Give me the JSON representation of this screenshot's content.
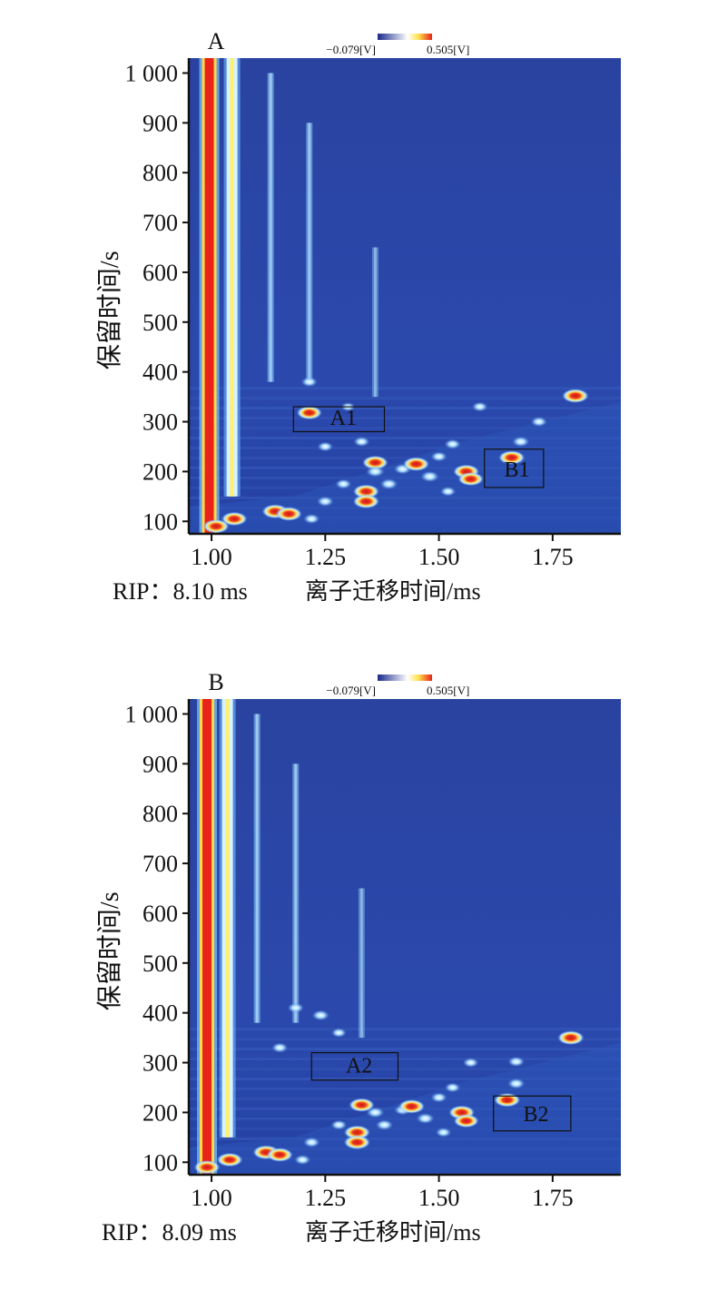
{
  "chart_data": [
    {
      "type": "heatmap",
      "panel_label": "A",
      "xlabel": "离子迁移时间/ms",
      "ylabel": "保留时间/s",
      "x_ticks": [
        {
          "value": 1.0,
          "label": "1.00"
        },
        {
          "value": 1.25,
          "label": "1.25"
        },
        {
          "value": 1.5,
          "label": "1.50"
        },
        {
          "value": 1.75,
          "label": "1.75"
        }
      ],
      "y_ticks": [
        {
          "value": 100,
          "label": "100"
        },
        {
          "value": 200,
          "label": "200"
        },
        {
          "value": 300,
          "label": "300"
        },
        {
          "value": 400,
          "label": "400"
        },
        {
          "value": 500,
          "label": "500"
        },
        {
          "value": 600,
          "label": "600"
        },
        {
          "value": 700,
          "label": "700"
        },
        {
          "value": 800,
          "label": "800"
        },
        {
          "value": 900,
          "label": "900"
        },
        {
          "value": 1000,
          "label": "1 000"
        }
      ],
      "xlim": [
        0.95,
        1.9
      ],
      "ylim": [
        75,
        1030
      ],
      "colorbar": {
        "min_label": "−0.079[V]",
        "max_label": "0.505[V]",
        "colors": [
          "#1a2a8c",
          "#ffffff",
          "#ffe14d",
          "#e8231a"
        ]
      },
      "rip_text": "RIP：8.10 ms",
      "regions": [
        {
          "label": "A1",
          "x0": 1.18,
          "x1": 1.38,
          "y0": 280,
          "y1": 330
        },
        {
          "label": "B1",
          "x0": 1.6,
          "x1": 1.73,
          "y0": 168,
          "y1": 245
        }
      ],
      "streaks": [
        {
          "x": 0.995,
          "y0": 75,
          "y1": 1030,
          "intensity": 1.0
        },
        {
          "x": 1.045,
          "y0": 150,
          "y1": 1030,
          "intensity": 0.7
        },
        {
          "x": 1.13,
          "y0": 380,
          "y1": 1000,
          "intensity": 0.32
        },
        {
          "x": 1.215,
          "y0": 380,
          "y1": 900,
          "intensity": 0.3
        },
        {
          "x": 1.36,
          "y0": 350,
          "y1": 650,
          "intensity": 0.18
        }
      ],
      "peaks": [
        {
          "x": 1.215,
          "y": 318,
          "v": 0.78
        },
        {
          "x": 1.215,
          "y": 380,
          "v": 0.5
        },
        {
          "x": 1.3,
          "y": 330,
          "v": 0.3
        },
        {
          "x": 1.25,
          "y": 250,
          "v": 0.45
        },
        {
          "x": 1.33,
          "y": 260,
          "v": 0.5
        },
        {
          "x": 1.36,
          "y": 218,
          "v": 0.85
        },
        {
          "x": 1.36,
          "y": 200,
          "v": 0.7
        },
        {
          "x": 1.39,
          "y": 175,
          "v": 0.65
        },
        {
          "x": 1.34,
          "y": 160,
          "v": 0.9
        },
        {
          "x": 1.34,
          "y": 140,
          "v": 0.92
        },
        {
          "x": 1.42,
          "y": 205,
          "v": 0.6
        },
        {
          "x": 1.45,
          "y": 215,
          "v": 0.9
        },
        {
          "x": 1.48,
          "y": 190,
          "v": 0.7
        },
        {
          "x": 1.5,
          "y": 230,
          "v": 0.5
        },
        {
          "x": 1.53,
          "y": 255,
          "v": 0.5
        },
        {
          "x": 1.56,
          "y": 200,
          "v": 0.88
        },
        {
          "x": 1.57,
          "y": 185,
          "v": 0.8
        },
        {
          "x": 1.59,
          "y": 330,
          "v": 0.45
        },
        {
          "x": 1.66,
          "y": 228,
          "v": 0.92
        },
        {
          "x": 1.68,
          "y": 260,
          "v": 0.6
        },
        {
          "x": 1.72,
          "y": 300,
          "v": 0.5
        },
        {
          "x": 1.8,
          "y": 352,
          "v": 0.95
        },
        {
          "x": 1.14,
          "y": 120,
          "v": 0.95
        },
        {
          "x": 1.17,
          "y": 115,
          "v": 0.9
        },
        {
          "x": 1.05,
          "y": 105,
          "v": 0.85
        },
        {
          "x": 1.01,
          "y": 90,
          "v": 0.9
        },
        {
          "x": 1.25,
          "y": 140,
          "v": 0.55
        },
        {
          "x": 1.22,
          "y": 105,
          "v": 0.5
        },
        {
          "x": 1.29,
          "y": 175,
          "v": 0.5
        },
        {
          "x": 1.52,
          "y": 160,
          "v": 0.45
        }
      ]
    },
    {
      "type": "heatmap",
      "panel_label": "B",
      "xlabel": "离子迁移时间/ms",
      "ylabel": "保留时间/s",
      "x_ticks": [
        {
          "value": 1.0,
          "label": "1.00"
        },
        {
          "value": 1.25,
          "label": "1.25"
        },
        {
          "value": 1.5,
          "label": "1.50"
        },
        {
          "value": 1.75,
          "label": "1.75"
        }
      ],
      "y_ticks": [
        {
          "value": 100,
          "label": "100"
        },
        {
          "value": 200,
          "label": "200"
        },
        {
          "value": 300,
          "label": "300"
        },
        {
          "value": 400,
          "label": "400"
        },
        {
          "value": 500,
          "label": "500"
        },
        {
          "value": 600,
          "label": "600"
        },
        {
          "value": 700,
          "label": "700"
        },
        {
          "value": 800,
          "label": "800"
        },
        {
          "value": 900,
          "label": "900"
        },
        {
          "value": 1000,
          "label": "1 000"
        }
      ],
      "xlim": [
        0.95,
        1.9
      ],
      "ylim": [
        75,
        1030
      ],
      "colorbar": {
        "min_label": "−0.079[V]",
        "max_label": "0.505[V]",
        "colors": [
          "#1a2a8c",
          "#ffffff",
          "#ffe14d",
          "#e8231a"
        ]
      },
      "rip_text": "RIP：8.09 ms",
      "regions": [
        {
          "label": "A2",
          "x0": 1.22,
          "x1": 1.41,
          "y0": 265,
          "y1": 320
        },
        {
          "label": "B2",
          "x0": 1.62,
          "x1": 1.79,
          "y0": 163,
          "y1": 233
        }
      ],
      "streaks": [
        {
          "x": 0.99,
          "y0": 75,
          "y1": 1030,
          "intensity": 1.0
        },
        {
          "x": 1.035,
          "y0": 150,
          "y1": 1030,
          "intensity": 0.7
        },
        {
          "x": 1.1,
          "y0": 380,
          "y1": 1000,
          "intensity": 0.32
        },
        {
          "x": 1.185,
          "y0": 380,
          "y1": 900,
          "intensity": 0.3
        },
        {
          "x": 1.33,
          "y0": 350,
          "y1": 650,
          "intensity": 0.18
        }
      ],
      "peaks": [
        {
          "x": 1.185,
          "y": 410,
          "v": 0.5
        },
        {
          "x": 1.24,
          "y": 395,
          "v": 0.6
        },
        {
          "x": 1.15,
          "y": 330,
          "v": 0.5
        },
        {
          "x": 1.28,
          "y": 360,
          "v": 0.4
        },
        {
          "x": 1.33,
          "y": 215,
          "v": 0.8
        },
        {
          "x": 1.36,
          "y": 200,
          "v": 0.65
        },
        {
          "x": 1.38,
          "y": 175,
          "v": 0.6
        },
        {
          "x": 1.32,
          "y": 160,
          "v": 0.9
        },
        {
          "x": 1.32,
          "y": 140,
          "v": 0.92
        },
        {
          "x": 1.42,
          "y": 205,
          "v": 0.55
        },
        {
          "x": 1.44,
          "y": 212,
          "v": 0.9
        },
        {
          "x": 1.47,
          "y": 188,
          "v": 0.65
        },
        {
          "x": 1.5,
          "y": 230,
          "v": 0.5
        },
        {
          "x": 1.53,
          "y": 250,
          "v": 0.45
        },
        {
          "x": 1.55,
          "y": 200,
          "v": 0.88
        },
        {
          "x": 1.56,
          "y": 183,
          "v": 0.75
        },
        {
          "x": 1.57,
          "y": 300,
          "v": 0.45
        },
        {
          "x": 1.65,
          "y": 225,
          "v": 0.92
        },
        {
          "x": 1.67,
          "y": 258,
          "v": 0.6
        },
        {
          "x": 1.67,
          "y": 302,
          "v": 0.55
        },
        {
          "x": 1.79,
          "y": 350,
          "v": 0.95
        },
        {
          "x": 1.12,
          "y": 120,
          "v": 0.95
        },
        {
          "x": 1.15,
          "y": 115,
          "v": 0.9
        },
        {
          "x": 1.04,
          "y": 105,
          "v": 0.85
        },
        {
          "x": 0.99,
          "y": 90,
          "v": 0.9
        },
        {
          "x": 1.22,
          "y": 140,
          "v": 0.55
        },
        {
          "x": 1.2,
          "y": 105,
          "v": 0.5
        },
        {
          "x": 1.28,
          "y": 175,
          "v": 0.5
        },
        {
          "x": 1.51,
          "y": 160,
          "v": 0.45
        }
      ]
    }
  ]
}
